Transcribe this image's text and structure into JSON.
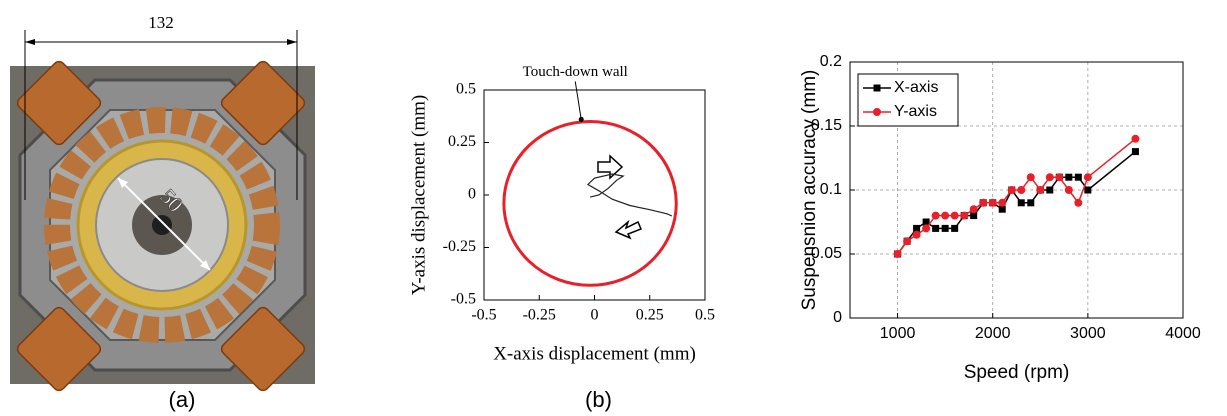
{
  "photo": {
    "width_dimension": "132",
    "diameter_dimension": "50",
    "caption": "(a)"
  },
  "chart_data": [
    {
      "type": "orbit",
      "caption": "(b)",
      "xlabel": "X-axis displacement (mm)",
      "ylabel": "Y-axis displacement (mm)",
      "xlim": [
        -0.5,
        0.5
      ],
      "ylim": [
        -0.5,
        0.5
      ],
      "xticks": [
        -0.5,
        -0.25,
        0,
        0.25,
        0.5
      ],
      "yticks": [
        -0.5,
        -0.25,
        0,
        0.25,
        0.5
      ],
      "circle": {
        "cx": -0.02,
        "cy": -0.04,
        "r": 0.39,
        "color": "#e8202a"
      },
      "x": [
        -0.02,
        0.02,
        0.06,
        0.1,
        0.13,
        0.08,
        0.0,
        -0.03,
        0.02,
        0.08,
        0.16,
        0.25,
        0.33,
        0.35
      ],
      "values": [
        -0.01,
        0.0,
        0.03,
        0.07,
        0.09,
        0.1,
        0.08,
        0.05,
        0.02,
        -0.02,
        -0.05,
        -0.07,
        -0.09,
        -0.1
      ],
      "color": "#222222",
      "annotations": [
        {
          "text": "Touch-down wall",
          "x": -0.06,
          "y": 0.36
        }
      ]
    },
    {
      "type": "line",
      "xlabel": "Speed (rpm)",
      "ylabel": "Suspensnion accuracy (mm)",
      "xlim": [
        500,
        4000
      ],
      "ylim": [
        0,
        0.2
      ],
      "xticks": [
        1000,
        2000,
        3000,
        4000
      ],
      "yticks": [
        0,
        0.05,
        0.1,
        0.15,
        0.2
      ],
      "grid": true,
      "legend": "upper-left",
      "x": [
        1000,
        1100,
        1200,
        1300,
        1400,
        1500,
        1600,
        1700,
        1800,
        1900,
        2000,
        2100,
        2200,
        2300,
        2400,
        2500,
        2600,
        2700,
        2800,
        2900,
        3000,
        3500
      ],
      "series": [
        {
          "name": "X-axis",
          "color": "#000000",
          "marker": "square",
          "values": [
            0.05,
            0.06,
            0.07,
            0.075,
            0.07,
            0.07,
            0.07,
            0.08,
            0.08,
            0.09,
            0.09,
            0.085,
            0.1,
            0.09,
            0.09,
            0.1,
            0.1,
            0.11,
            0.11,
            0.11,
            0.1,
            0.13
          ]
        },
        {
          "name": "Y-axis",
          "color": "#e8202a",
          "marker": "circle",
          "values": [
            0.05,
            0.06,
            0.065,
            0.07,
            0.08,
            0.08,
            0.08,
            0.08,
            0.085,
            0.09,
            0.09,
            0.09,
            0.1,
            0.1,
            0.11,
            0.1,
            0.11,
            0.11,
            0.1,
            0.09,
            0.11,
            0.14
          ]
        }
      ]
    }
  ]
}
